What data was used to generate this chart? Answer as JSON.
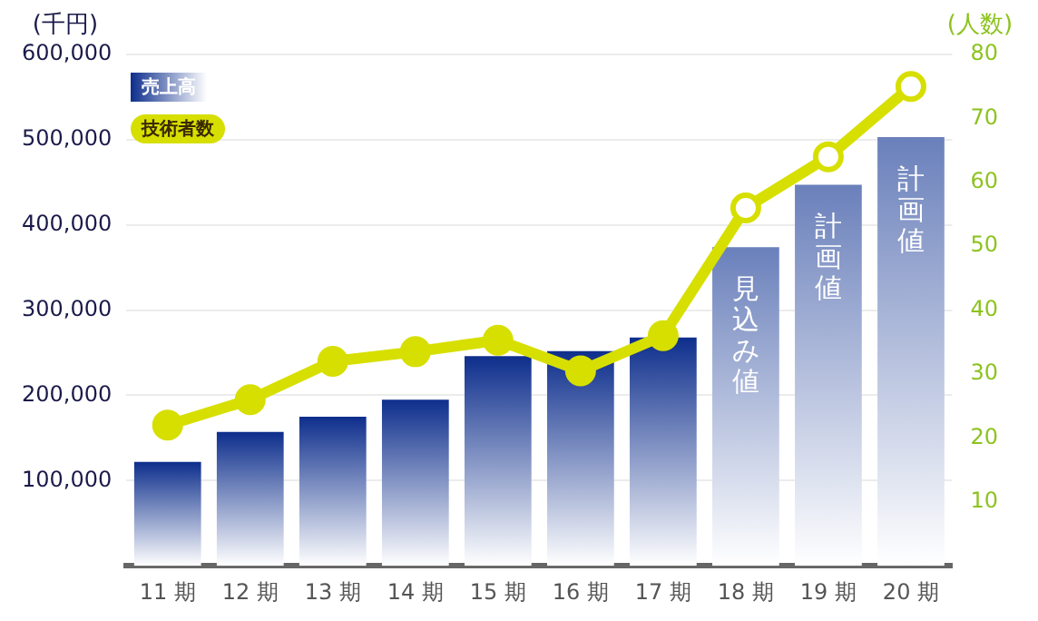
{
  "chart_data": {
    "type": "bar",
    "ylabel": "(千円)",
    "y2label": "(人数)",
    "categories": [
      "11 期",
      "12 期",
      "13 期",
      "14 期",
      "15 期",
      "16 期",
      "17 期",
      "18 期",
      "19 期",
      "20 期"
    ],
    "series": [
      {
        "name": "売上高",
        "color": "#0d2e8c",
        "colors": [
          "#0d2e8c",
          "#0d2e8c",
          "#0d2e8c",
          "#0d2e8c",
          "#0d2e8c",
          "#0d2e8c",
          "#0d2e8c",
          "#6a80bb",
          "#6a80bb",
          "#6a80bb"
        ],
        "values": [
          122000,
          157000,
          175000,
          195000,
          246000,
          252000,
          268000,
          374000,
          447000,
          503000
        ]
      },
      {
        "name": "技術者数",
        "type": "line",
        "axis": "y2",
        "color": "#d7df00",
        "colors": [
          "#d7df00",
          "#d7df00",
          "#d7df00",
          "#d7df00",
          "#d7df00",
          "#d7df00",
          "#d7df00",
          "#ffffff",
          "#ffffff",
          "#ffffff"
        ],
        "values": [
          22,
          26,
          32,
          33.5,
          35.3,
          30.5,
          36,
          56,
          64,
          75
        ]
      }
    ],
    "ylim": [
      0,
      600000
    ],
    "yticks": [
      {
        "value": 100000,
        "label": "100,000"
      },
      {
        "value": 200000,
        "label": "200,000"
      },
      {
        "value": 300000,
        "label": "300,000"
      },
      {
        "value": 400000,
        "label": "400,000"
      },
      {
        "value": 500000,
        "label": "500,000"
      },
      {
        "value": 600000,
        "label": "600,000"
      }
    ],
    "y2lim": [
      0,
      80
    ],
    "y2ticks": [
      10,
      20,
      30,
      40,
      50,
      60,
      70,
      80
    ],
    "annotations": [
      "見込み値",
      "計画値",
      "計画値"
    ],
    "grid": "y",
    "legend": "top left",
    "marker": "circle",
    "line_style": "solid"
  }
}
